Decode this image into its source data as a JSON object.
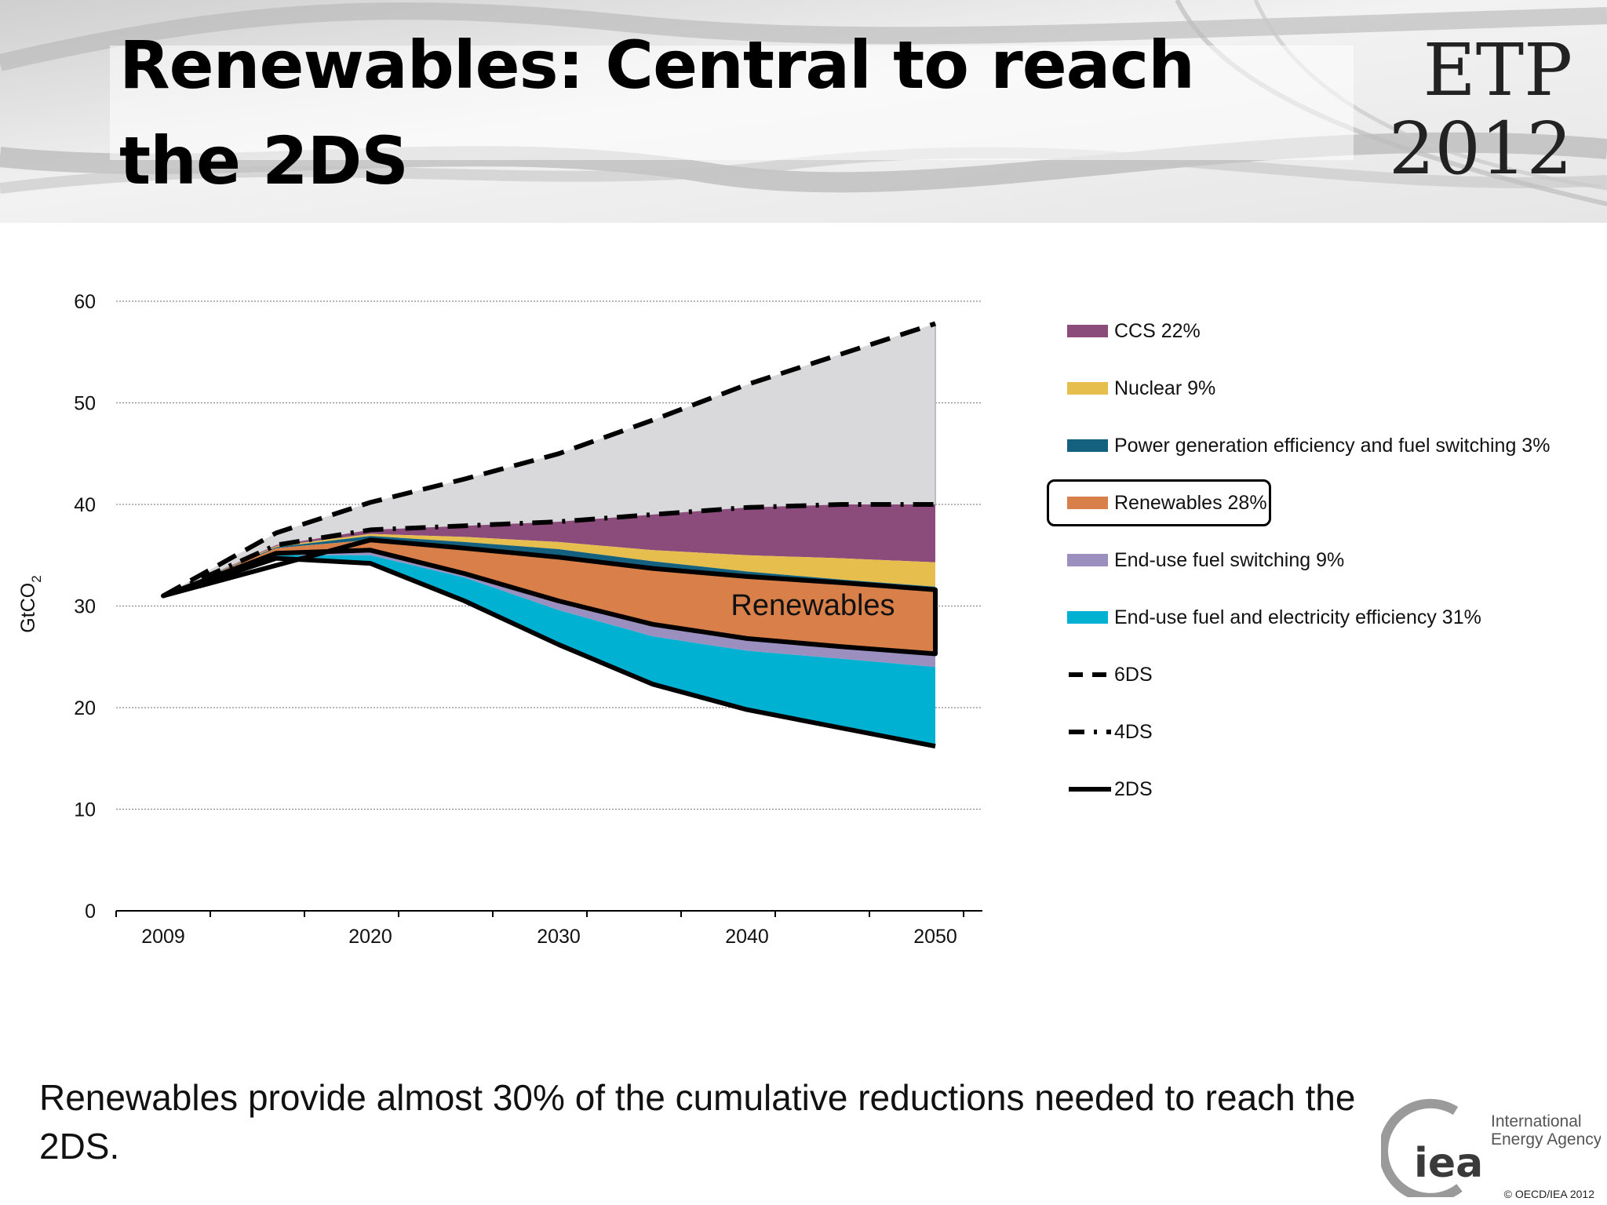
{
  "slide": {
    "title": "Renewables: Central to reach the 2DS",
    "brand_line1": "ETP",
    "brand_line2": "2012",
    "caption": "Renewables provide almost 30% of the cumulative reductions needed to reach the 2DS.",
    "logo_mark": "iea",
    "logo_name_line1": "International",
    "logo_name_line2": "Energy Agency",
    "copyright": "© OECD/IEA 2012"
  },
  "chart_data": {
    "type": "area",
    "ylabel": "GtCO2",
    "ylim": [
      0,
      60
    ],
    "yticks": [
      0,
      10,
      20,
      30,
      40,
      50,
      60
    ],
    "xlim": [
      2006.5,
      2052.5
    ],
    "xtick_labels": [
      "2009",
      "2020",
      "2030",
      "2040",
      "2050"
    ],
    "xtick_values": [
      2009,
      2020,
      2030,
      2040,
      2050
    ],
    "x_minor_ticks": [
      2015,
      2025,
      2035,
      2045
    ],
    "grid": true,
    "legend_position": "right",
    "x": [
      2009,
      2015,
      2020,
      2025,
      2030,
      2035,
      2040,
      2045,
      2050
    ],
    "lines": {
      "6DS": [
        31,
        37.2,
        40.2,
        42.5,
        45,
        48.3,
        51.8,
        54.8,
        57.8
      ],
      "4DS": [
        31,
        36,
        37.5,
        37.9,
        38.3,
        39,
        39.7,
        40,
        40
      ],
      "2DS": [
        31,
        34.7,
        34.2,
        30.5,
        26.2,
        22.3,
        19.8,
        18,
        16.2
      ]
    },
    "stack_boundaries": {
      "Nuclear_CCS": [
        31,
        35.9,
        37.1,
        36.8,
        36.3,
        35.5,
        35,
        34.7,
        34.3
      ],
      "Power_Nuclear": [
        31,
        35.8,
        36.9,
        36.3,
        35.6,
        34.4,
        33.4,
        32.6,
        31.9
      ],
      "Renewables_Power": [
        31,
        35.7,
        36.5,
        35.7,
        34.8,
        33.7,
        32.9,
        32.3,
        31.6
      ],
      "EndUseSwitching_Renewables": [
        31,
        35.2,
        35.5,
        33.2,
        30.5,
        28.2,
        26.8,
        26,
        25.3
      ],
      "EndUseEfficiency_EndUseSwitching": [
        31,
        35,
        35,
        32.8,
        29.6,
        27,
        25.6,
        24.8,
        24
      ]
    },
    "series": [
      {
        "name": "CCS 22%",
        "color": "#8B4C7C"
      },
      {
        "name": "Nuclear 9%",
        "color": "#E6BE4E"
      },
      {
        "name": "Power generation efficiency and fuel switching 3%",
        "color": "#14607F"
      },
      {
        "name": "Renewables 28%",
        "color": "#D9804A"
      },
      {
        "name": "End-use fuel switching 9%",
        "color": "#9A8FBF"
      },
      {
        "name": "End-use fuel and electricity efficiency 31%",
        "color": "#00B1D2"
      }
    ],
    "line_series": [
      {
        "name": "6DS",
        "style": "dashed"
      },
      {
        "name": "4DS",
        "style": "dash-dot"
      },
      {
        "name": "2DS",
        "style": "solid"
      }
    ],
    "annotations": [
      {
        "text": "Renewables",
        "target": "Renewables 28%",
        "highlight": "box"
      }
    ],
    "gap_fill_color": "#D9D9DB"
  }
}
